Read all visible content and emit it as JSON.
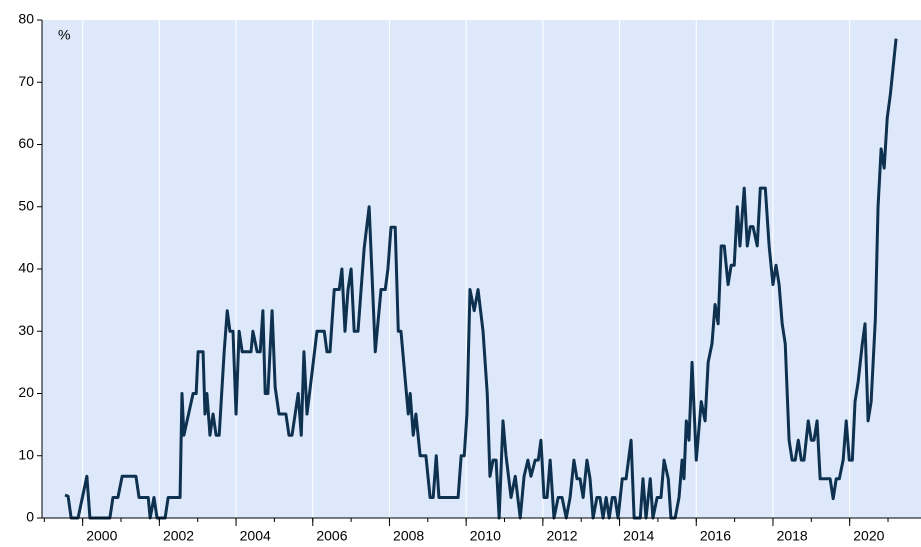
{
  "chart_data": {
    "type": "line",
    "annotation": "%",
    "color": "#0e3150",
    "grid": true,
    "xlim": [
      1998.94,
      2021.86
    ],
    "xticks": [
      2000,
      2002,
      2004,
      2006,
      2008,
      2010,
      2012,
      2014,
      2016,
      2018,
      2020
    ],
    "ylim": [
      0,
      80
    ],
    "yticks": [
      0,
      10,
      20,
      30,
      40,
      50,
      60,
      70,
      80
    ],
    "x": [
      1999.54,
      1999.62,
      1999.7,
      1999.88,
      2000.11,
      2000.19,
      2000.71,
      2000.79,
      2000.92,
      2001.03,
      2001.39,
      2001.47,
      2001.71,
      2001.76,
      2001.86,
      2001.94,
      2002.15,
      2002.23,
      2002.54,
      2002.59,
      2002.64,
      2002.88,
      2002.96,
      2003.01,
      2003.14,
      2003.19,
      2003.24,
      2003.32,
      2003.4,
      2003.48,
      2003.56,
      2003.69,
      2003.77,
      2003.84,
      2003.92,
      2004.0,
      2004.08,
      2004.16,
      2004.39,
      2004.44,
      2004.55,
      2004.63,
      2004.7,
      2004.76,
      2004.83,
      2004.94,
      2005.02,
      2005.12,
      2005.3,
      2005.38,
      2005.46,
      2005.62,
      2005.7,
      2005.77,
      2005.85,
      2005.98,
      2006.11,
      2006.3,
      2006.37,
      2006.45,
      2006.56,
      2006.69,
      2006.76,
      2006.84,
      2006.92,
      2007.0,
      2007.08,
      2007.18,
      2007.34,
      2007.47,
      2007.63,
      2007.78,
      2007.89,
      2007.96,
      2008.04,
      2008.15,
      2008.23,
      2008.3,
      2008.49,
      2008.54,
      2008.62,
      2008.69,
      2008.8,
      2008.95,
      2009.06,
      2009.14,
      2009.22,
      2009.29,
      2009.79,
      2009.87,
      2009.95,
      2010.02,
      2010.1,
      2010.21,
      2010.31,
      2010.44,
      2010.55,
      2010.62,
      2010.7,
      2010.78,
      2010.86,
      2010.96,
      2011.04,
      2011.17,
      2011.28,
      2011.41,
      2011.51,
      2011.61,
      2011.69,
      2011.8,
      2011.88,
      2011.95,
      2012.03,
      2012.11,
      2012.19,
      2012.29,
      2012.4,
      2012.5,
      2012.61,
      2012.71,
      2012.81,
      2012.89,
      2012.97,
      2013.05,
      2013.15,
      2013.23,
      2013.31,
      2013.41,
      2013.49,
      2013.57,
      2013.65,
      2013.73,
      2013.81,
      2013.88,
      2013.96,
      2014.07,
      2014.17,
      2014.3,
      2014.38,
      2014.54,
      2014.61,
      2014.69,
      2014.8,
      2014.87,
      2014.98,
      2015.08,
      2015.16,
      2015.27,
      2015.34,
      2015.45,
      2015.55,
      2015.63,
      2015.68,
      2015.74,
      2015.81,
      2015.89,
      2016.0,
      2016.13,
      2016.23,
      2016.31,
      2016.41,
      2016.49,
      2016.57,
      2016.65,
      2016.73,
      2016.83,
      2016.91,
      2016.99,
      2017.07,
      2017.14,
      2017.25,
      2017.33,
      2017.41,
      2017.48,
      2017.59,
      2017.67,
      2017.8,
      2017.9,
      2018.0,
      2018.08,
      2018.16,
      2018.24,
      2018.32,
      2018.42,
      2018.5,
      2018.58,
      2018.66,
      2018.74,
      2018.81,
      2018.92,
      2019.0,
      2019.07,
      2019.15,
      2019.23,
      2019.49,
      2019.57,
      2019.65,
      2019.73,
      2019.83,
      2019.91,
      2019.99,
      2020.07,
      2020.14,
      2020.22,
      2020.33,
      2020.4,
      2020.48,
      2020.56,
      2020.67,
      2020.74,
      2020.82,
      2020.9,
      2020.98,
      2021.06,
      2021.21
    ],
    "values": [
      3.7,
      3.5,
      0,
      0,
      6.7,
      0,
      0,
      3.3,
      3.3,
      6.7,
      6.7,
      3.3,
      3.3,
      0,
      3.3,
      0,
      0,
      3.3,
      3.3,
      20,
      13.3,
      20,
      20,
      26.7,
      26.7,
      16.7,
      20,
      13.3,
      16.7,
      13.3,
      13.3,
      26.7,
      33.3,
      30,
      30,
      16.7,
      30,
      26.7,
      26.7,
      30,
      26.7,
      26.7,
      33.3,
      20,
      20,
      33.3,
      21,
      16.7,
      16.7,
      13.3,
      13.3,
      20,
      13.3,
      26.7,
      16.7,
      23.3,
      30,
      30,
      26.7,
      26.7,
      36.7,
      36.7,
      40,
      30,
      36.7,
      40,
      30,
      30,
      43.3,
      50,
      26.7,
      36.7,
      36.7,
      40,
      46.7,
      46.7,
      30,
      30,
      16.7,
      20,
      13.3,
      16.7,
      10,
      10,
      3.3,
      3.3,
      10,
      3.3,
      3.3,
      10,
      10,
      16.7,
      36.7,
      33.3,
      36.7,
      30,
      20,
      6.7,
      9.3,
      9.3,
      0,
      15.6,
      10,
      3.3,
      6.7,
      0,
      6.7,
      9.3,
      6.7,
      9.3,
      9.3,
      12.5,
      3.3,
      3.3,
      9.3,
      0,
      3.3,
      3.3,
      0,
      3.3,
      9.3,
      6.3,
      6.3,
      3.3,
      9.3,
      6.3,
      0,
      3.3,
      3.3,
      0,
      3.3,
      0,
      3.3,
      3.3,
      0,
      6.3,
      6.3,
      12.5,
      0,
      0,
      6.3,
      0,
      6.3,
      0,
      3.3,
      3.3,
      9.3,
      6.3,
      0,
      0,
      3.3,
      9.3,
      6.3,
      15.6,
      12.5,
      25,
      9.3,
      18.7,
      15.6,
      25,
      28,
      34.3,
      31.2,
      43.7,
      43.7,
      37.5,
      40.6,
      40.6,
      50,
      43.7,
      53,
      43.7,
      46.8,
      46.8,
      43.7,
      53,
      53,
      43.7,
      37.5,
      40.6,
      37.5,
      31.2,
      28,
      12.5,
      9.3,
      9.3,
      12.5,
      9.3,
      9.3,
      15.6,
      12.5,
      12.5,
      15.6,
      6.3,
      6.3,
      3.1,
      6.3,
      6.3,
      9.3,
      15.6,
      9.3,
      9.3,
      18.7,
      21.8,
      28,
      31.2,
      15.6,
      18.7,
      32,
      50,
      59.3,
      56.2,
      64.3,
      68,
      77
    ]
  }
}
